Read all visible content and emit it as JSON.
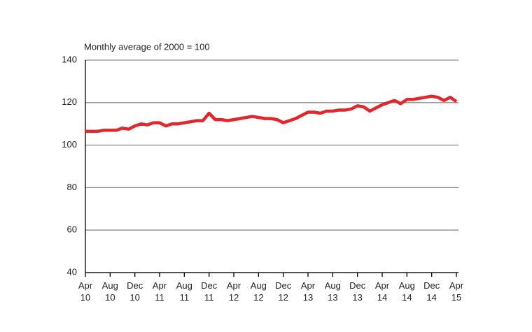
{
  "chart_data": {
    "type": "line",
    "subtitle": "Monthly average of 2000 = 100",
    "categories": [
      "Apr 10",
      null,
      null,
      null,
      "Aug 10",
      null,
      null,
      null,
      "Dec 10",
      null,
      null,
      null,
      "Apr 11",
      null,
      null,
      null,
      "Aug 11",
      null,
      null,
      null,
      "Dec 11",
      null,
      null,
      null,
      "Apr 12",
      null,
      null,
      null,
      "Aug 12",
      null,
      null,
      null,
      "Dec 12",
      null,
      null,
      null,
      "Apr 13",
      null,
      null,
      null,
      "Aug 13",
      null,
      null,
      null,
      "Dec 13",
      null,
      null,
      null,
      "Apr 14",
      null,
      null,
      null,
      "Aug 14",
      null,
      null,
      null,
      "Dec 14",
      null,
      null,
      null,
      "Apr 15"
    ],
    "series": [
      {
        "color": "#e3262c",
        "values": [
          106.5,
          106.5,
          106.5,
          107,
          107,
          107,
          108,
          107.5,
          109,
          110,
          109.5,
          110.5,
          110.5,
          109,
          110,
          110,
          110.5,
          111,
          111.5,
          111.5,
          115,
          112,
          112,
          111.5,
          112,
          112.5,
          113,
          113.5,
          113,
          112.5,
          112.5,
          112,
          110.5,
          111.5,
          112.5,
          114,
          115.5,
          115.5,
          115,
          116,
          116,
          116.5,
          116.5,
          117,
          118.5,
          118,
          116,
          117.5,
          119,
          120,
          121,
          119.5,
          121.5,
          121.5,
          122,
          122.5,
          123,
          122.5,
          121,
          122.5,
          120.5
        ]
      }
    ],
    "ylim": [
      40,
      140
    ],
    "yticks": [
      40,
      60,
      80,
      100,
      120,
      140
    ],
    "grid": true
  }
}
